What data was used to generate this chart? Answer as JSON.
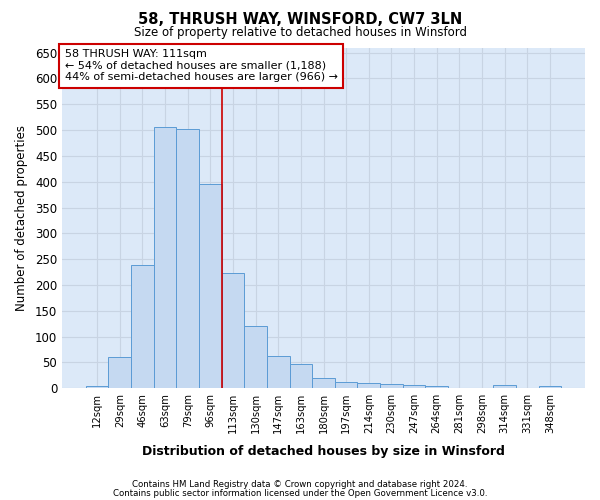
{
  "title1": "58, THRUSH WAY, WINSFORD, CW7 3LN",
  "title2": "Size of property relative to detached houses in Winsford",
  "xlabel": "Distribution of detached houses by size in Winsford",
  "ylabel": "Number of detached properties",
  "footnote1": "Contains HM Land Registry data © Crown copyright and database right 2024.",
  "footnote2": "Contains public sector information licensed under the Open Government Licence v3.0.",
  "annotation_title": "58 THRUSH WAY: 111sqm",
  "annotation_line1": "← 54% of detached houses are smaller (1,188)",
  "annotation_line2": "44% of semi-detached houses are larger (966) →",
  "bar_labels": [
    "12sqm",
    "29sqm",
    "46sqm",
    "63sqm",
    "79sqm",
    "96sqm",
    "113sqm",
    "130sqm",
    "147sqm",
    "163sqm",
    "180sqm",
    "197sqm",
    "214sqm",
    "230sqm",
    "247sqm",
    "264sqm",
    "281sqm",
    "298sqm",
    "314sqm",
    "331sqm",
    "348sqm"
  ],
  "bar_values": [
    4,
    60,
    238,
    506,
    502,
    396,
    224,
    120,
    62,
    46,
    20,
    12,
    10,
    8,
    6,
    5,
    1,
    0,
    6,
    0,
    5
  ],
  "bar_edge_color": "#5b9bd5",
  "bar_face_color": "#c5d9f1",
  "vline_color": "#cc0000",
  "vline_x_idx": 6,
  "grid_color": "#c8d4e3",
  "background_color": "#dce9f8",
  "annotation_box_color": "#ffffff",
  "annotation_box_edge": "#cc0000",
  "ylim": [
    0,
    660
  ],
  "yticks": [
    0,
    50,
    100,
    150,
    200,
    250,
    300,
    350,
    400,
    450,
    500,
    550,
    600,
    650
  ]
}
